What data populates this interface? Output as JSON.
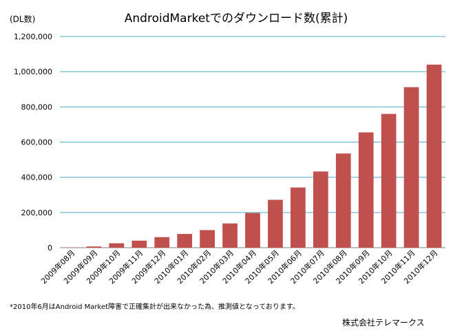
{
  "chart_data": {
    "type": "bar",
    "title": "AndroidMarketでのダウンロード数(累計)",
    "ylabel": "(DL数)",
    "xlabel": "",
    "categories": [
      "2009年08月",
      "2009年09月",
      "2009年10月",
      "2009年11月",
      "2009年12月",
      "2010年01月",
      "2010年02月",
      "2010年03月",
      "2010年04月",
      "2010年05月",
      "2010年06月",
      "2010年07月",
      "2010年08月",
      "2010年09月",
      "2010年10月",
      "2010年11月",
      "2010年12月"
    ],
    "values": [
      1000,
      7000,
      25000,
      40000,
      60000,
      78000,
      100000,
      138000,
      197000,
      272000,
      342000,
      433000,
      535000,
      655000,
      760000,
      912000,
      1040000
    ],
    "ylim": [
      0,
      1200000
    ],
    "yticks": [
      0,
      200000,
      400000,
      600000,
      800000,
      1000000,
      1200000
    ],
    "ytick_labels": [
      "0",
      "200,000",
      "400,000",
      "600,000",
      "800,000",
      "1,000,000",
      "1,200,000"
    ],
    "grid": true,
    "bar_color": "#C0504D",
    "grid_color": "#4BACC6"
  },
  "footnote": "*2010年6月はAndroid  Market障害で正確集計が出来なかった為、推測値となっております。",
  "company": "株式会社テレマークス"
}
